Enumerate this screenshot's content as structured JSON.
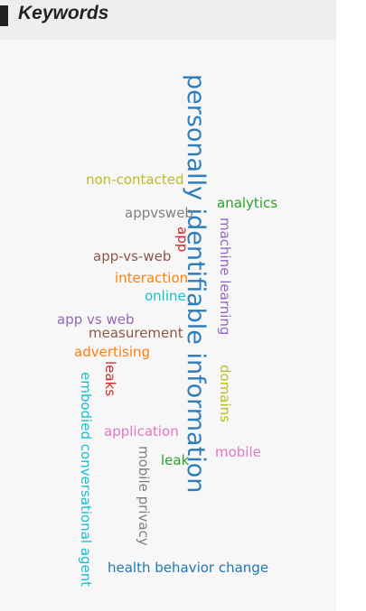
{
  "header": {
    "title": "Keywords"
  },
  "keywords": [
    {
      "text": "personally identifiable information",
      "color": "#2f7ebc"
    },
    {
      "text": "non-contacted",
      "color": "#bcbd22"
    },
    {
      "text": "analytics",
      "color": "#2ca02c"
    },
    {
      "text": "appvsweb",
      "color": "#7f7f7f"
    },
    {
      "text": "app",
      "color": "#d62728"
    },
    {
      "text": "machine learning",
      "color": "#9467bd"
    },
    {
      "text": "app-vs-web",
      "color": "#8c564b"
    },
    {
      "text": "interaction",
      "color": "#ff7f0e"
    },
    {
      "text": "online",
      "color": "#17becf"
    },
    {
      "text": "app vs web",
      "color": "#9467bd"
    },
    {
      "text": "measurement",
      "color": "#8c564b"
    },
    {
      "text": "advertising",
      "color": "#ff7f0e"
    },
    {
      "text": "leaks",
      "color": "#d62728"
    },
    {
      "text": "domains",
      "color": "#bcbd22"
    },
    {
      "text": "embodied conversational agent",
      "color": "#17becf"
    },
    {
      "text": "application",
      "color": "#e377c2"
    },
    {
      "text": "mobile privacy",
      "color": "#7f7f7f"
    },
    {
      "text": "mobile",
      "color": "#e377c2"
    },
    {
      "text": "leak",
      "color": "#2ca02c"
    },
    {
      "text": "health behavior change",
      "color": "#1f77b4"
    }
  ]
}
